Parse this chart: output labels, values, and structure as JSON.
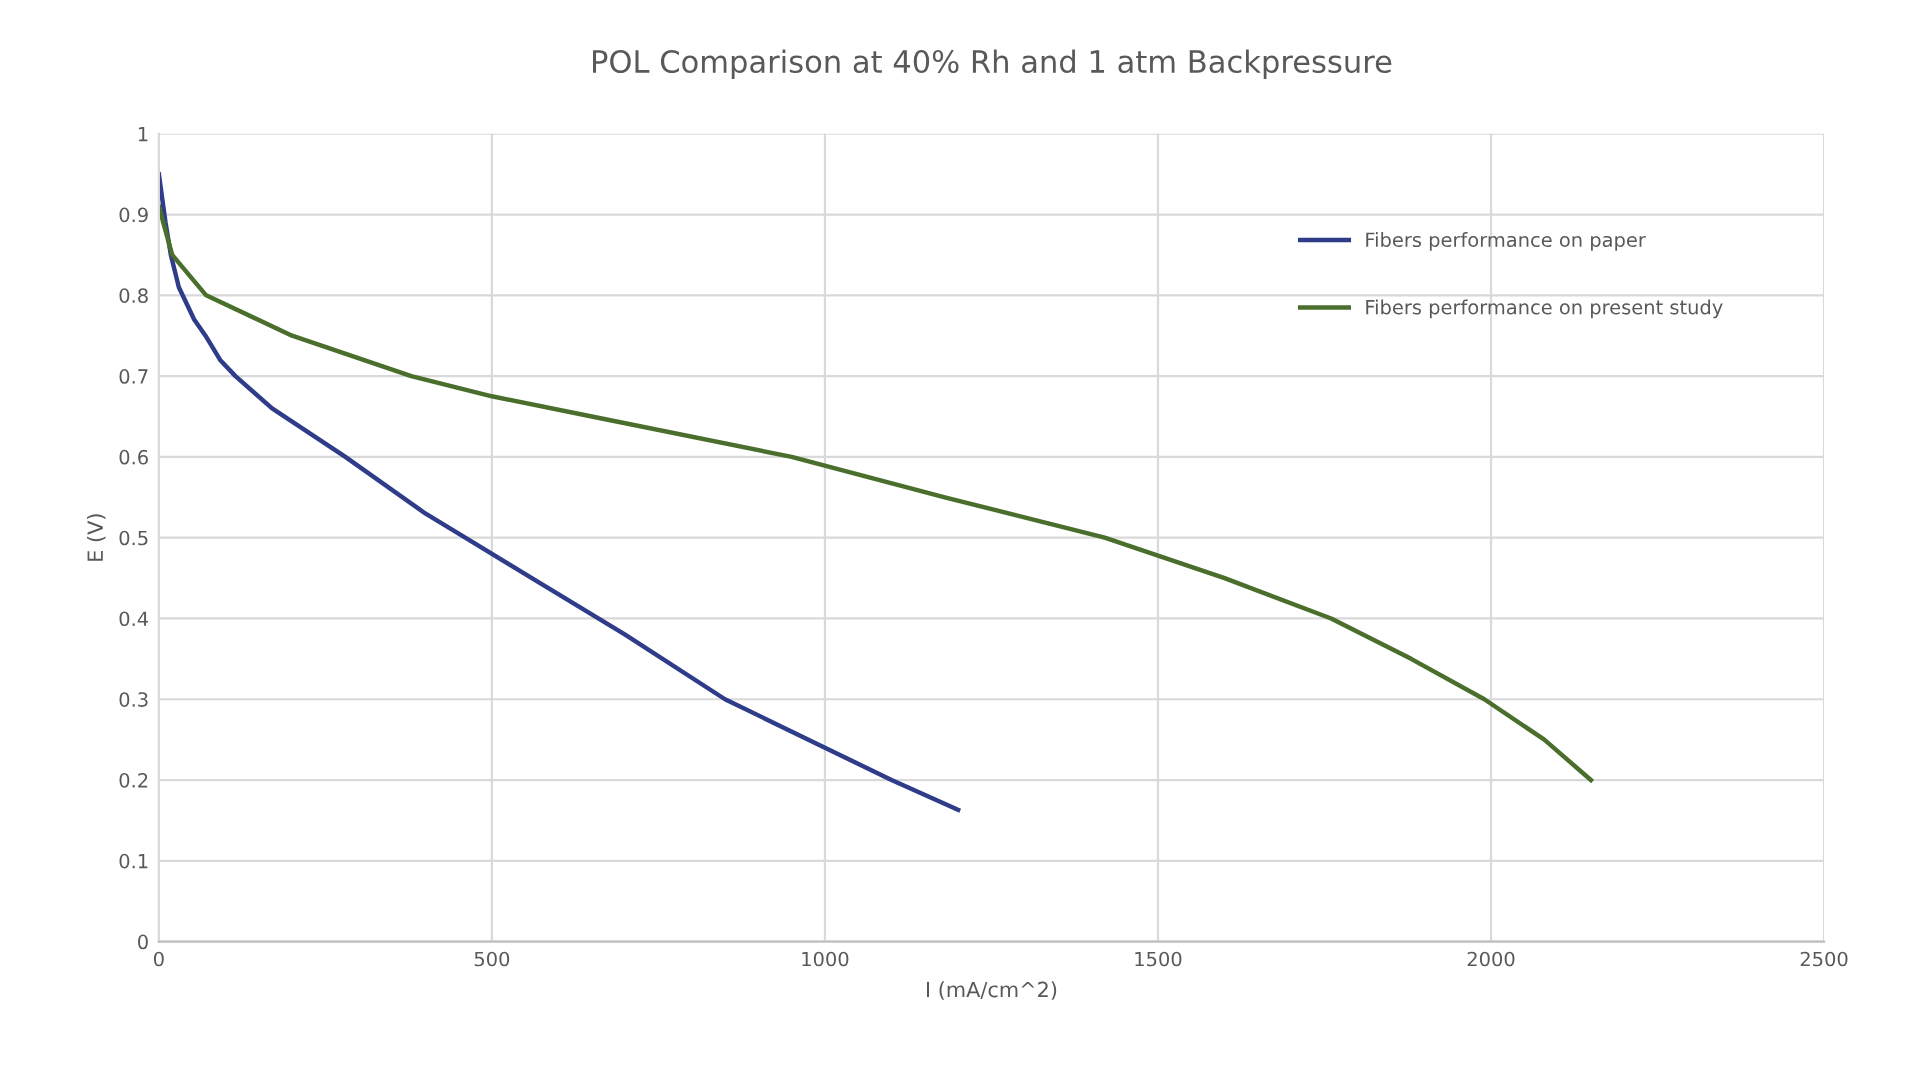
{
  "chart_data": {
    "type": "line",
    "title": "POL Comparison at 40% Rh and 1 atm Backpressure",
    "xlabel": "I (mA/cm^2)",
    "ylabel": "E (V)",
    "xlim": [
      0,
      2500
    ],
    "xticks": [
      0,
      500,
      1000,
      1500,
      2000,
      2500
    ],
    "ylim": [
      0,
      1
    ],
    "yticks": [
      0,
      0.1,
      0.2,
      0.3,
      0.4,
      0.5,
      0.6,
      0.7,
      0.8,
      0.9,
      1
    ],
    "grid": true,
    "legend": "top right",
    "series": [
      {
        "name": "Fibers performance on paper",
        "color": "#2e3c8a",
        "x": [
          0,
          10,
          18,
          30,
          53,
          70,
          92,
          115,
          170,
          280,
          400,
          460,
          560,
          700,
          850,
          1000,
          1100,
          1200
        ],
        "values": [
          0.95,
          0.89,
          0.85,
          0.81,
          0.77,
          0.75,
          0.72,
          0.7,
          0.66,
          0.6,
          0.53,
          0.5,
          0.45,
          0.38,
          0.3,
          0.24,
          0.2,
          0.163
        ]
      },
      {
        "name": "Fibers performance on present study",
        "color": "#4a6e2c",
        "x": [
          0,
          20,
          71,
          200,
          379,
          500,
          650,
          950,
          1180,
          1420,
          1600,
          1760,
          1880,
          1990,
          2080,
          2150
        ],
        "values": [
          0.91,
          0.85,
          0.8,
          0.75,
          0.7,
          0.675,
          0.65,
          0.6,
          0.55,
          0.5,
          0.45,
          0.4,
          0.35,
          0.3,
          0.25,
          0.2
        ]
      }
    ]
  }
}
